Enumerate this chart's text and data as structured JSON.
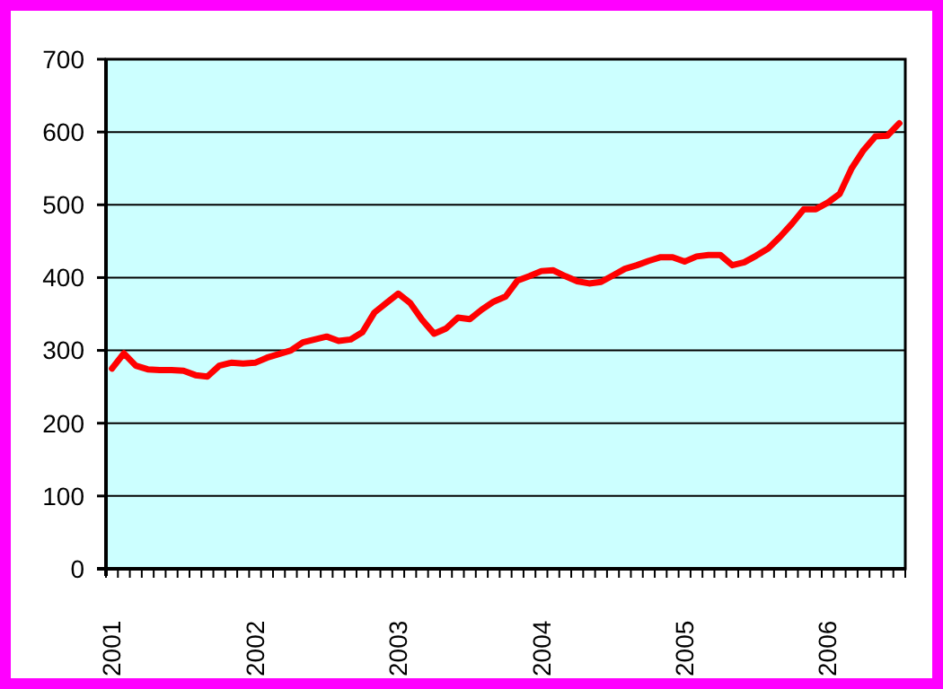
{
  "chart_data": {
    "type": "line",
    "categories": [
      "2001",
      null,
      null,
      null,
      null,
      null,
      null,
      null,
      null,
      null,
      null,
      null,
      "2002",
      null,
      null,
      null,
      null,
      null,
      null,
      null,
      null,
      null,
      null,
      null,
      "2003",
      null,
      null,
      null,
      null,
      null,
      null,
      null,
      null,
      null,
      null,
      null,
      "2004",
      null,
      null,
      null,
      null,
      null,
      null,
      null,
      null,
      null,
      null,
      null,
      "2005",
      null,
      null,
      null,
      null,
      null,
      null,
      null,
      null,
      null,
      null,
      null,
      "2006",
      null,
      null,
      null,
      null,
      null,
      null
    ],
    "series": [
      {
        "color": "#ff0000",
        "values": [
          275,
          296,
          279,
          274,
          273,
          273,
          272,
          266,
          264,
          279,
          283,
          282,
          283,
          290,
          295,
          300,
          311,
          315,
          319,
          313,
          315,
          325,
          352,
          365,
          378,
          365,
          342,
          323,
          330,
          345,
          343,
          356,
          367,
          374,
          396,
          402,
          409,
          410,
          402,
          395,
          392,
          394,
          403,
          412,
          417,
          423,
          428,
          428,
          422,
          429,
          431,
          431,
          417,
          421,
          430,
          440,
          456,
          474,
          494,
          494,
          503,
          515,
          550,
          575,
          594,
          595,
          612
        ]
      }
    ],
    "ylim": [
      0,
      700
    ],
    "yticks": [
      0,
      100,
      200,
      300,
      400,
      500,
      600,
      700
    ],
    "grid": "y"
  }
}
